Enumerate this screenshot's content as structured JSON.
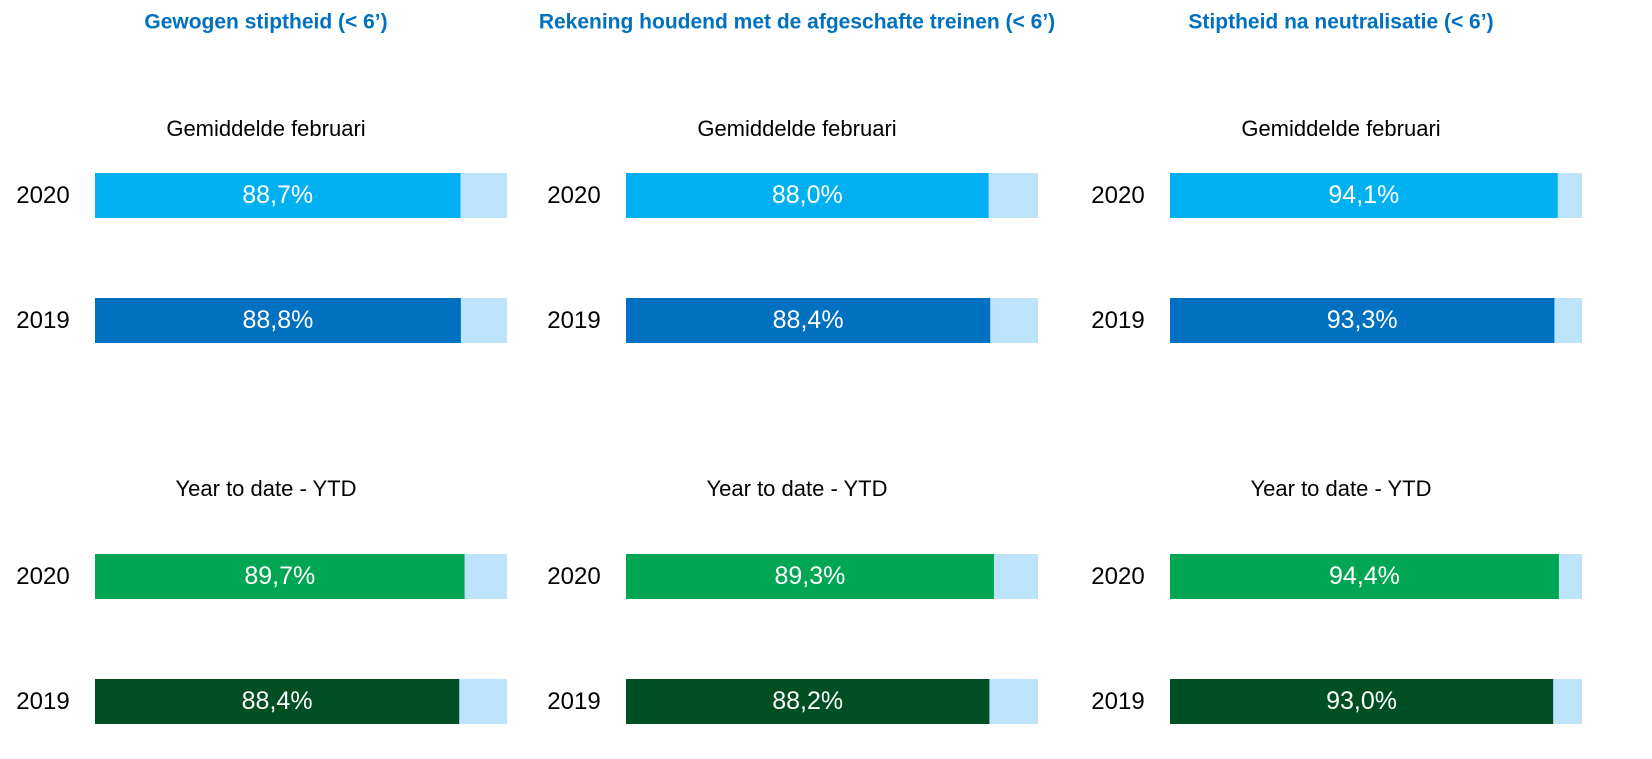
{
  "chart_data": [
    {
      "type": "bar",
      "title": "Gewogen stiptheid (< 6’)",
      "subtitle": "Gemiddelde februari",
      "categories": [
        "2020",
        "2019"
      ],
      "values": [
        88.7,
        88.8
      ],
      "value_labels": [
        "88,7%",
        "88,8%"
      ],
      "colors": [
        "#00b0f0",
        "#0070c0"
      ],
      "background_color": "#bde3fb",
      "xlim": [
        0,
        100
      ]
    },
    {
      "type": "bar",
      "title": "Rekening houdend met de afgeschafte treinen (< 6’)",
      "subtitle": "Gemiddelde februari",
      "categories": [
        "2020",
        "2019"
      ],
      "values": [
        88.0,
        88.4
      ],
      "value_labels": [
        "88,0%",
        "88,4%"
      ],
      "colors": [
        "#00b0f0",
        "#0070c0"
      ],
      "background_color": "#bde3fb",
      "xlim": [
        0,
        100
      ]
    },
    {
      "type": "bar",
      "title": "Stiptheid na neutralisatie (< 6’)",
      "subtitle": "Gemiddelde februari",
      "categories": [
        "2020",
        "2019"
      ],
      "values": [
        94.1,
        93.3
      ],
      "value_labels": [
        "94,1%",
        "93,3%"
      ],
      "colors": [
        "#00b0f0",
        "#0070c0"
      ],
      "background_color": "#bde3fb",
      "xlim": [
        0,
        100
      ]
    },
    {
      "type": "bar",
      "subtitle": "Year to date - YTD",
      "categories": [
        "2020",
        "2019"
      ],
      "values": [
        89.7,
        88.4
      ],
      "value_labels": [
        "89,7%",
        "88,4%"
      ],
      "colors": [
        "#00a651",
        "#004f23"
      ],
      "background_color": "#bde3fb",
      "xlim": [
        0,
        100
      ]
    },
    {
      "type": "bar",
      "subtitle": "Year to date - YTD",
      "categories": [
        "2020",
        "2019"
      ],
      "values": [
        89.3,
        88.2
      ],
      "value_labels": [
        "89,3%",
        "88,2%"
      ],
      "colors": [
        "#00a651",
        "#004f23"
      ],
      "background_color": "#bde3fb",
      "xlim": [
        0,
        100
      ]
    },
    {
      "type": "bar",
      "subtitle": "Year to date - YTD",
      "categories": [
        "2020",
        "2019"
      ],
      "values": [
        94.4,
        93.0
      ],
      "value_labels": [
        "94,4%",
        "93,0%"
      ],
      "colors": [
        "#00a651",
        "#004f23"
      ],
      "background_color": "#bde3fb",
      "xlim": [
        0,
        100
      ]
    }
  ]
}
